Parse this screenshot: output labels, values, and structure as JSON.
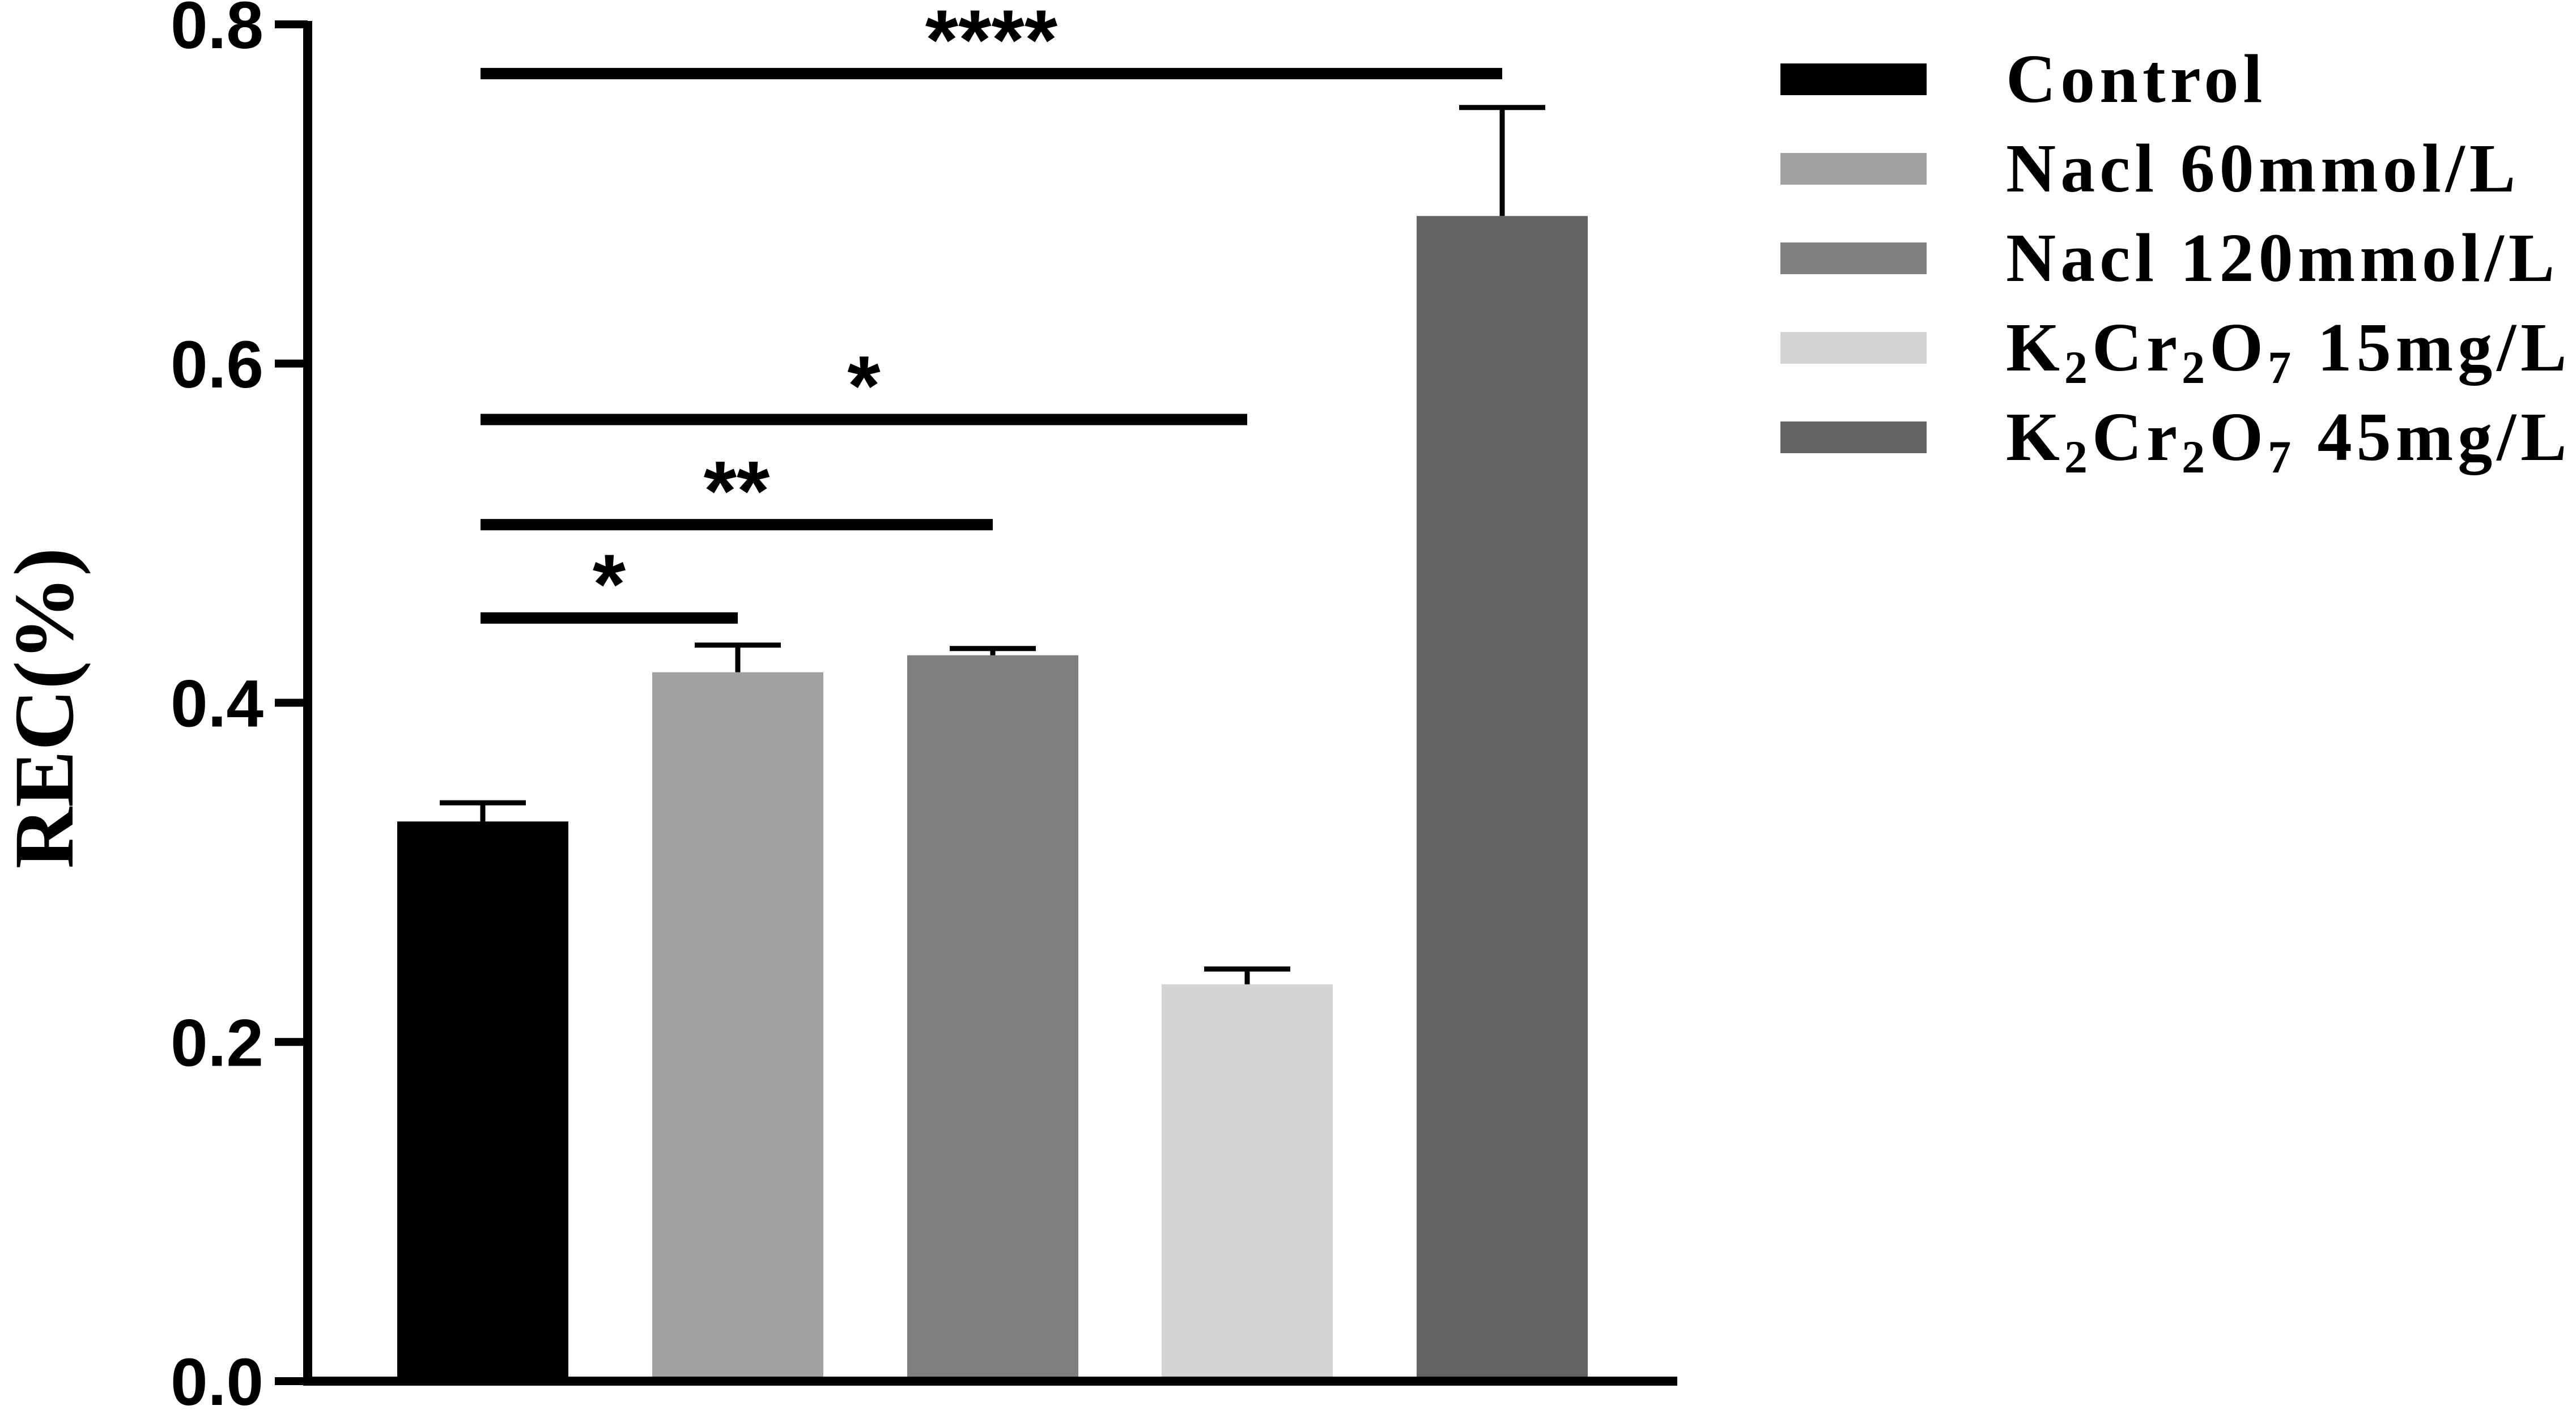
{
  "chart_data": {
    "type": "bar",
    "title": "",
    "xlabel": "",
    "ylabel": "REC(%)",
    "ylim": [
      0,
      0.8
    ],
    "yticks": [
      "0.0",
      "0.2",
      "0.4",
      "0.6",
      "0.8"
    ],
    "categories": [
      "Control",
      "Nacl 60mmol/L",
      "Nacl 120mmol/L",
      "K2Cr2O7 15mg/L",
      "K2Cr2O7 45mg/L"
    ],
    "values": [
      0.33,
      0.418,
      0.428,
      0.234,
      0.687
    ],
    "errors": [
      0.011,
      0.016,
      0.004,
      0.009,
      0.064
    ],
    "colors": [
      "#000000",
      "#a1a1a4",
      "#7f7f7f",
      "#d4d4d4",
      "#636363"
    ],
    "legend": {
      "position": "right",
      "entries": [
        {
          "label": "Control",
          "color": "#000000"
        },
        {
          "label": "Nacl 60mmol/L",
          "color": "#a1a1a4"
        },
        {
          "label": "Nacl 120mmol/L",
          "color": "#7f7f7f"
        },
        {
          "label": "K2Cr2O7 15mg/L",
          "color": "#d4d4d4"
        },
        {
          "label": "K2Cr2O7 45mg/L",
          "color": "#636363"
        }
      ]
    },
    "significance": [
      {
        "from": 0,
        "to": 1,
        "label": "*",
        "y": 0.45
      },
      {
        "from": 0,
        "to": 2,
        "label": "**",
        "y": 0.505
      },
      {
        "from": 0,
        "to": 3,
        "label": "*",
        "y": 0.567
      },
      {
        "from": 0,
        "to": 4,
        "label": "****",
        "y": 0.771
      }
    ],
    "grid": false
  }
}
